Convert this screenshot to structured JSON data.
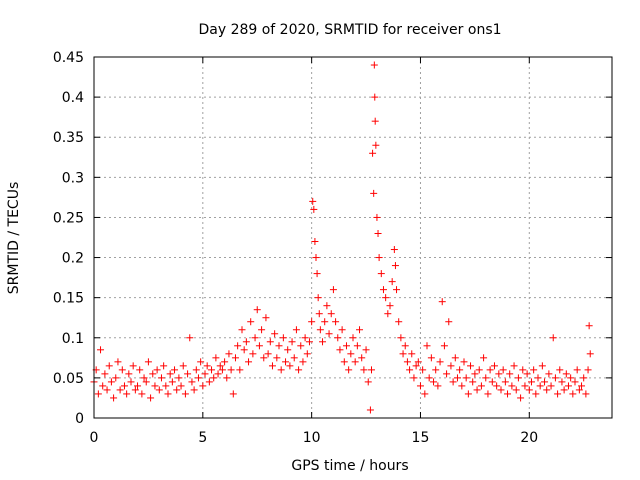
{
  "chart_data": {
    "type": "scatter",
    "title": "Day 289 of 2020, SRMTID for receiver ons1",
    "xlabel": "GPS time / hours",
    "ylabel": "SRMTID / TECUs",
    "xlim": [
      0,
      23.8
    ],
    "ylim": [
      0,
      0.45
    ],
    "xticks": [
      0,
      5,
      10,
      15,
      20
    ],
    "xtick_labels": [
      "0",
      "5",
      "10",
      "15",
      "20"
    ],
    "yticks": [
      0,
      0.05,
      0.1,
      0.15,
      0.2,
      0.25,
      0.3,
      0.35,
      0.4,
      0.45
    ],
    "ytick_labels": [
      "0",
      "0.05",
      "0.1",
      "0.15",
      "0.2",
      "0.25",
      "0.3",
      "0.35",
      "0.4",
      "0.45"
    ],
    "grid": true,
    "marker": "+",
    "series": [
      {
        "name": "SRMTID",
        "color": "#ff0000",
        "x": [
          0.0,
          0.1,
          0.2,
          0.3,
          0.4,
          0.5,
          0.6,
          0.7,
          0.8,
          0.9,
          1.0,
          1.1,
          1.2,
          1.3,
          1.4,
          1.5,
          1.6,
          1.7,
          1.8,
          1.9,
          2.0,
          2.1,
          2.2,
          2.3,
          2.4,
          2.5,
          2.6,
          2.7,
          2.8,
          2.9,
          3.0,
          3.1,
          3.2,
          3.3,
          3.4,
          3.5,
          3.6,
          3.7,
          3.8,
          3.9,
          4.0,
          4.1,
          4.2,
          4.3,
          4.4,
          4.5,
          4.6,
          4.7,
          4.8,
          4.9,
          5.0,
          5.1,
          5.2,
          5.3,
          5.4,
          5.5,
          5.6,
          5.7,
          5.8,
          5.9,
          6.0,
          6.1,
          6.2,
          6.3,
          6.4,
          6.5,
          6.6,
          6.7,
          6.8,
          6.9,
          7.0,
          7.1,
          7.2,
          7.3,
          7.4,
          7.5,
          7.6,
          7.7,
          7.8,
          7.9,
          8.0,
          8.1,
          8.2,
          8.3,
          8.4,
          8.5,
          8.6,
          8.7,
          8.8,
          8.9,
          9.0,
          9.1,
          9.2,
          9.3,
          9.4,
          9.5,
          9.6,
          9.7,
          9.8,
          9.9,
          10.0,
          10.05,
          10.1,
          10.15,
          10.2,
          10.25,
          10.3,
          10.35,
          10.4,
          10.5,
          10.6,
          10.7,
          10.8,
          10.9,
          11.0,
          11.1,
          11.2,
          11.3,
          11.4,
          11.5,
          11.6,
          11.7,
          11.8,
          11.9,
          12.0,
          12.1,
          12.2,
          12.3,
          12.4,
          12.5,
          12.6,
          12.7,
          12.75,
          12.8,
          12.85,
          12.88,
          12.9,
          12.92,
          12.95,
          13.0,
          13.05,
          13.1,
          13.2,
          13.3,
          13.4,
          13.5,
          13.6,
          13.7,
          13.8,
          13.85,
          13.9,
          14.0,
          14.1,
          14.2,
          14.3,
          14.4,
          14.5,
          14.6,
          14.7,
          14.8,
          14.9,
          15.0,
          15.1,
          15.2,
          15.3,
          15.4,
          15.5,
          15.6,
          15.7,
          15.8,
          15.9,
          16.0,
          16.1,
          16.2,
          16.3,
          16.4,
          16.5,
          16.6,
          16.7,
          16.8,
          16.9,
          17.0,
          17.1,
          17.2,
          17.3,
          17.4,
          17.5,
          17.6,
          17.7,
          17.8,
          17.9,
          18.0,
          18.1,
          18.2,
          18.3,
          18.4,
          18.5,
          18.6,
          18.7,
          18.8,
          18.9,
          19.0,
          19.1,
          19.2,
          19.3,
          19.4,
          19.5,
          19.6,
          19.7,
          19.8,
          19.9,
          20.0,
          20.1,
          20.2,
          20.3,
          20.4,
          20.5,
          20.6,
          20.7,
          20.8,
          20.9,
          21.0,
          21.1,
          21.2,
          21.3,
          21.4,
          21.5,
          21.6,
          21.7,
          21.8,
          21.9,
          22.0,
          22.1,
          22.2,
          22.3,
          22.4,
          22.5,
          22.6,
          22.7,
          22.75,
          22.8
        ],
        "y": [
          0.045,
          0.06,
          0.03,
          0.085,
          0.04,
          0.055,
          0.035,
          0.065,
          0.045,
          0.025,
          0.05,
          0.07,
          0.035,
          0.06,
          0.04,
          0.03,
          0.055,
          0.045,
          0.065,
          0.035,
          0.04,
          0.06,
          0.03,
          0.05,
          0.045,
          0.07,
          0.025,
          0.055,
          0.04,
          0.06,
          0.035,
          0.05,
          0.065,
          0.04,
          0.03,
          0.055,
          0.045,
          0.06,
          0.035,
          0.05,
          0.04,
          0.065,
          0.03,
          0.055,
          0.1,
          0.045,
          0.035,
          0.06,
          0.05,
          0.07,
          0.04,
          0.055,
          0.065,
          0.045,
          0.06,
          0.05,
          0.075,
          0.055,
          0.065,
          0.06,
          0.07,
          0.05,
          0.08,
          0.06,
          0.03,
          0.075,
          0.09,
          0.06,
          0.11,
          0.085,
          0.095,
          0.07,
          0.12,
          0.08,
          0.1,
          0.135,
          0.09,
          0.11,
          0.075,
          0.125,
          0.08,
          0.095,
          0.065,
          0.105,
          0.075,
          0.09,
          0.06,
          0.1,
          0.07,
          0.085,
          0.065,
          0.095,
          0.075,
          0.11,
          0.06,
          0.09,
          0.07,
          0.1,
          0.08,
          0.095,
          0.12,
          0.27,
          0.26,
          0.22,
          0.2,
          0.18,
          0.15,
          0.13,
          0.11,
          0.095,
          0.12,
          0.14,
          0.105,
          0.13,
          0.16,
          0.12,
          0.1,
          0.085,
          0.11,
          0.07,
          0.09,
          0.06,
          0.08,
          0.1,
          0.07,
          0.09,
          0.11,
          0.075,
          0.06,
          0.085,
          0.045,
          0.01,
          0.06,
          0.33,
          0.28,
          0.44,
          0.4,
          0.37,
          0.34,
          0.25,
          0.23,
          0.2,
          0.18,
          0.16,
          0.15,
          0.13,
          0.14,
          0.17,
          0.21,
          0.19,
          0.16,
          0.12,
          0.1,
          0.08,
          0.09,
          0.07,
          0.06,
          0.08,
          0.05,
          0.065,
          0.07,
          0.04,
          0.06,
          0.03,
          0.09,
          0.05,
          0.075,
          0.045,
          0.06,
          0.04,
          0.07,
          0.145,
          0.09,
          0.055,
          0.12,
          0.065,
          0.045,
          0.075,
          0.05,
          0.06,
          0.04,
          0.07,
          0.05,
          0.03,
          0.065,
          0.045,
          0.055,
          0.035,
          0.06,
          0.04,
          0.075,
          0.05,
          0.03,
          0.06,
          0.045,
          0.065,
          0.04,
          0.055,
          0.035,
          0.06,
          0.045,
          0.03,
          0.055,
          0.04,
          0.065,
          0.035,
          0.05,
          0.025,
          0.06,
          0.04,
          0.055,
          0.035,
          0.045,
          0.06,
          0.03,
          0.05,
          0.04,
          0.065,
          0.045,
          0.035,
          0.055,
          0.04,
          0.1,
          0.05,
          0.03,
          0.06,
          0.045,
          0.035,
          0.055,
          0.04,
          0.05,
          0.03,
          0.045,
          0.06,
          0.035,
          0.04,
          0.05,
          0.03,
          0.06,
          0.115,
          0.08
        ]
      }
    ]
  }
}
